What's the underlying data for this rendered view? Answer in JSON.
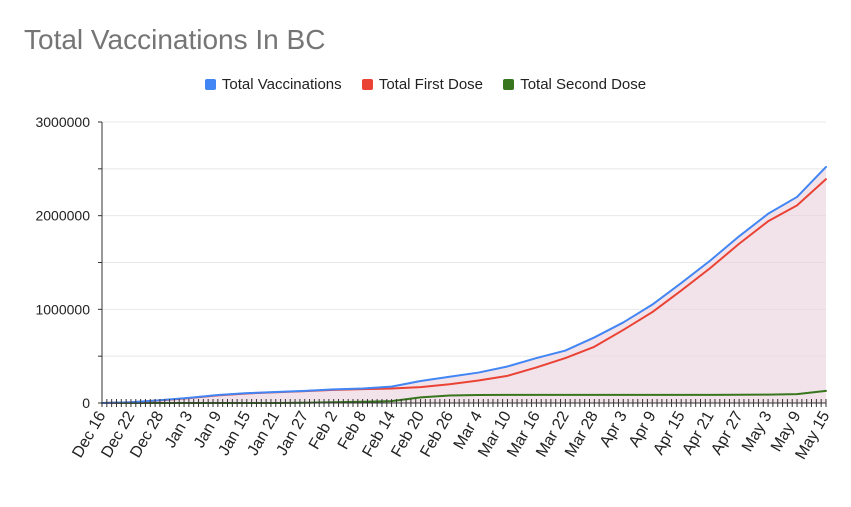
{
  "colors": {
    "total": "#4285f4",
    "first": "#ea4335",
    "second": "#38761d",
    "area": "#ead1dc",
    "grid": "#e8e8e8",
    "axis": "#333333"
  },
  "chart_data": {
    "type": "line",
    "title": "Total Vaccinations In BC",
    "xlabel": "",
    "ylabel": "",
    "ylim": [
      0,
      3000000
    ],
    "yticks": [
      "0",
      "1000000",
      "2000000",
      "3000000"
    ],
    "grid": true,
    "legend_position": "top",
    "x_tick_labels": [
      "Dec 16",
      "Dec 22",
      "Dec 28",
      "Jan 3",
      "Jan 9",
      "Jan 15",
      "Jan 21",
      "Jan 27",
      "Feb 2",
      "Feb 8",
      "Feb 14",
      "Feb 20",
      "Feb 26",
      "Mar 4",
      "Mar 10",
      "Mar 16",
      "Mar 22",
      "Mar 28",
      "Apr 3",
      "Apr 9",
      "Apr 15",
      "Apr 21",
      "Apr 27",
      "May 3",
      "May 9",
      "May 15"
    ],
    "series": [
      {
        "name": "Total Vaccinations",
        "values": [
          0,
          8000,
          30000,
          55000,
          85000,
          105000,
          118000,
          130000,
          145000,
          155000,
          175000,
          235000,
          280000,
          325000,
          390000,
          480000,
          560000,
          700000,
          860000,
          1050000,
          1280000,
          1520000,
          1780000,
          2020000,
          2200000,
          2520000
        ]
      },
      {
        "name": "Total First Dose",
        "values": [
          0,
          7000,
          28000,
          52000,
          82000,
          102000,
          115000,
          127000,
          140000,
          148000,
          155000,
          170000,
          200000,
          240000,
          290000,
          380000,
          480000,
          600000,
          780000,
          970000,
          1200000,
          1440000,
          1700000,
          1940000,
          2110000,
          2390000
        ]
      },
      {
        "name": "Total Second Dose",
        "values": [
          0,
          0,
          0,
          0,
          0,
          0,
          0,
          3000,
          8000,
          14000,
          20000,
          60000,
          80000,
          85000,
          87000,
          87000,
          87000,
          87000,
          87000,
          87000,
          87000,
          87000,
          88000,
          90000,
          95000,
          130000
        ]
      }
    ]
  }
}
